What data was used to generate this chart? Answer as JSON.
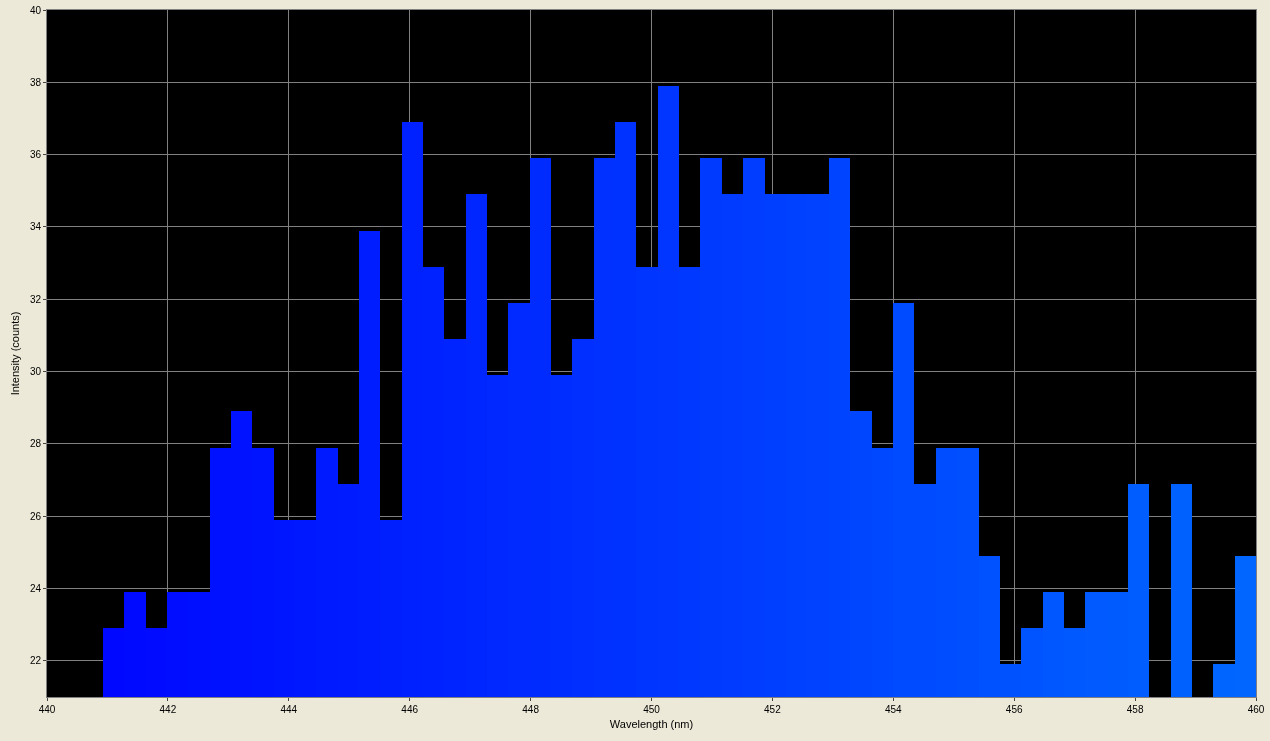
{
  "chart_data": {
    "type": "histogram",
    "xlabel": "Wavelength (nm)",
    "ylabel": "Intensity (counts)",
    "bins": [
      440.92,
      441.27,
      441.63,
      441.98,
      442.33,
      442.69,
      443.04,
      443.39,
      443.75,
      444.1,
      444.45,
      444.81,
      445.16,
      445.51,
      445.87,
      446.22,
      446.57,
      446.93,
      447.28,
      447.63,
      447.99,
      448.34,
      448.69,
      449.05,
      449.4,
      449.75,
      450.11,
      450.46,
      450.81,
      451.17,
      451.52,
      451.87,
      452.23,
      452.58,
      452.93,
      453.29,
      453.64,
      453.99,
      454.35,
      454.7,
      455.05,
      455.41,
      455.76,
      456.11,
      456.47,
      456.82,
      457.17,
      457.53,
      457.88,
      458.23,
      458.59,
      458.94,
      459.29,
      459.65,
      460.0
    ],
    "values": [
      22.9,
      23.9,
      22.9,
      23.9,
      23.9,
      27.9,
      28.9,
      27.9,
      25.9,
      25.9,
      27.9,
      26.9,
      33.9,
      25.9,
      36.9,
      32.9,
      30.9,
      34.9,
      29.9,
      31.9,
      35.9,
      29.9,
      30.9,
      35.9,
      36.9,
      32.9,
      37.9,
      32.9,
      35.9,
      34.9,
      35.9,
      34.9,
      34.9,
      34.9,
      35.9,
      28.9,
      27.9,
      31.9,
      26.9,
      27.9,
      27.9,
      24.9,
      21.9,
      22.9,
      23.9,
      22.9,
      23.9,
      23.9,
      26.9,
      null,
      26.9,
      null,
      21.9,
      24.9
    ],
    "colors": [
      "#0008ff",
      "#000aff",
      "#000bff",
      "#000dff",
      "#000fff",
      "#0011ff",
      "#0012ff",
      "#0014ff",
      "#0016ff",
      "#0018ff",
      "#001aff",
      "#001bff",
      "#001dff",
      "#001fff",
      "#0021ff",
      "#0022ff",
      "#0024ff",
      "#0026ff",
      "#0028ff",
      "#002aff",
      "#002bff",
      "#002dff",
      "#002fff",
      "#0031ff",
      "#0032ff",
      "#0034ff",
      "#0036ff",
      "#0038ff",
      "#003aff",
      "#003bff",
      "#003dff",
      "#003fff",
      "#0041ff",
      "#0042ff",
      "#0044ff",
      "#0046ff",
      "#0048ff",
      "#004aff",
      "#004bff",
      "#004dff",
      "#004fff",
      "#0051ff",
      "#0052ff",
      "#0054ff",
      "#0056ff",
      "#0058ff",
      "#005aff",
      "#005bff",
      "#005dff",
      "#005fff",
      "#0061ff",
      "#0062ff",
      "#0064ff",
      "#0066ff"
    ],
    "xlim": [
      440,
      460
    ],
    "xticks": [
      440,
      442,
      444,
      446,
      448,
      450,
      452,
      454,
      456,
      458,
      460
    ],
    "ylim": [
      21,
      40
    ],
    "yticks": [
      22,
      24,
      26,
      28,
      30,
      32,
      34,
      36,
      38,
      40
    ],
    "grid": true
  }
}
